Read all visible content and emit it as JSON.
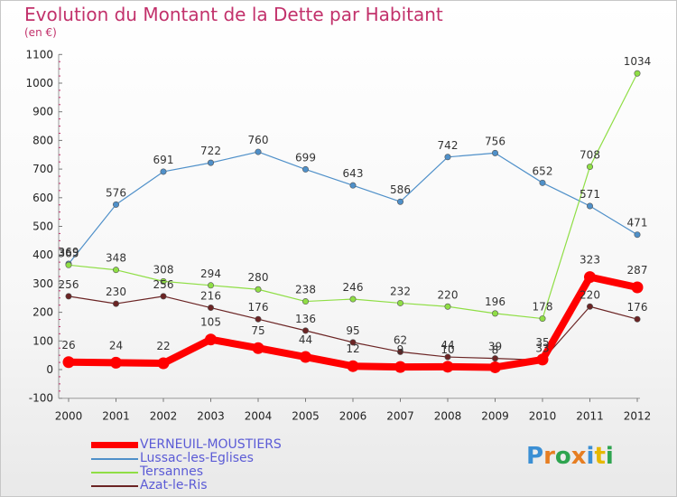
{
  "title": "Evolution du Montant de la Dette par Habitant",
  "subtitle": "(en €)",
  "logo": {
    "text": "Proxiti",
    "letter_colors": [
      "#3b8fd4",
      "#e67e22",
      "#2ea44f",
      "#e67e22",
      "#3b8fd4",
      "#e6b800",
      "#2ea44f"
    ]
  },
  "chart_data": {
    "type": "line",
    "title": "Evolution du Montant de la Dette par Habitant",
    "subtitle": "(en €)",
    "x": [
      "2000",
      "2001",
      "2002",
      "2003",
      "2004",
      "2005",
      "2006",
      "2007",
      "2008",
      "2009",
      "2010",
      "2011",
      "2012"
    ],
    "ylim": [
      -100,
      1100
    ],
    "yticks": [
      -100,
      0,
      100,
      200,
      300,
      400,
      500,
      600,
      700,
      800,
      900,
      1000,
      1100
    ],
    "grid": false,
    "legend": "bottom-left",
    "series": [
      {
        "name": "VERNEUIL-MOUSTIERS",
        "color": "#ff0000",
        "values": [
          26,
          24,
          22,
          105,
          75,
          44,
          12,
          9,
          10,
          8,
          35,
          323,
          287
        ]
      },
      {
        "name": "Lussac-les-Eglises",
        "color": "#4f90c9",
        "values": [
          369,
          576,
          691,
          722,
          760,
          699,
          643,
          586,
          742,
          756,
          652,
          571,
          471
        ]
      },
      {
        "name": "Tersannes",
        "color": "#8fde45",
        "values": [
          365,
          348,
          308,
          294,
          280,
          238,
          246,
          232,
          220,
          196,
          178,
          708,
          1034
        ]
      },
      {
        "name": "Azat-le-Ris",
        "color": "#6b2424",
        "values": [
          256,
          230,
          256,
          216,
          176,
          136,
          95,
          62,
          44,
          39,
          33,
          220,
          176
        ]
      }
    ],
    "data_labels": [
      [
        "26",
        "24",
        "22",
        "105",
        "75",
        "44",
        "12",
        "9",
        "10",
        "8",
        "35",
        "323",
        "287"
      ],
      [
        "369",
        "576",
        "691",
        "722",
        "760",
        "699",
        "643",
        "586",
        "742",
        "756",
        "652",
        "571",
        "471"
      ],
      [
        "365",
        "348",
        "308",
        "294",
        "280",
        "238",
        "246",
        "232",
        "220",
        "196",
        "178",
        "708",
        "1034"
      ],
      [
        "256",
        "230",
        "256",
        "216",
        "176",
        "136",
        "95",
        "62",
        "44",
        "39",
        "33",
        "220",
        "176"
      ]
    ]
  }
}
